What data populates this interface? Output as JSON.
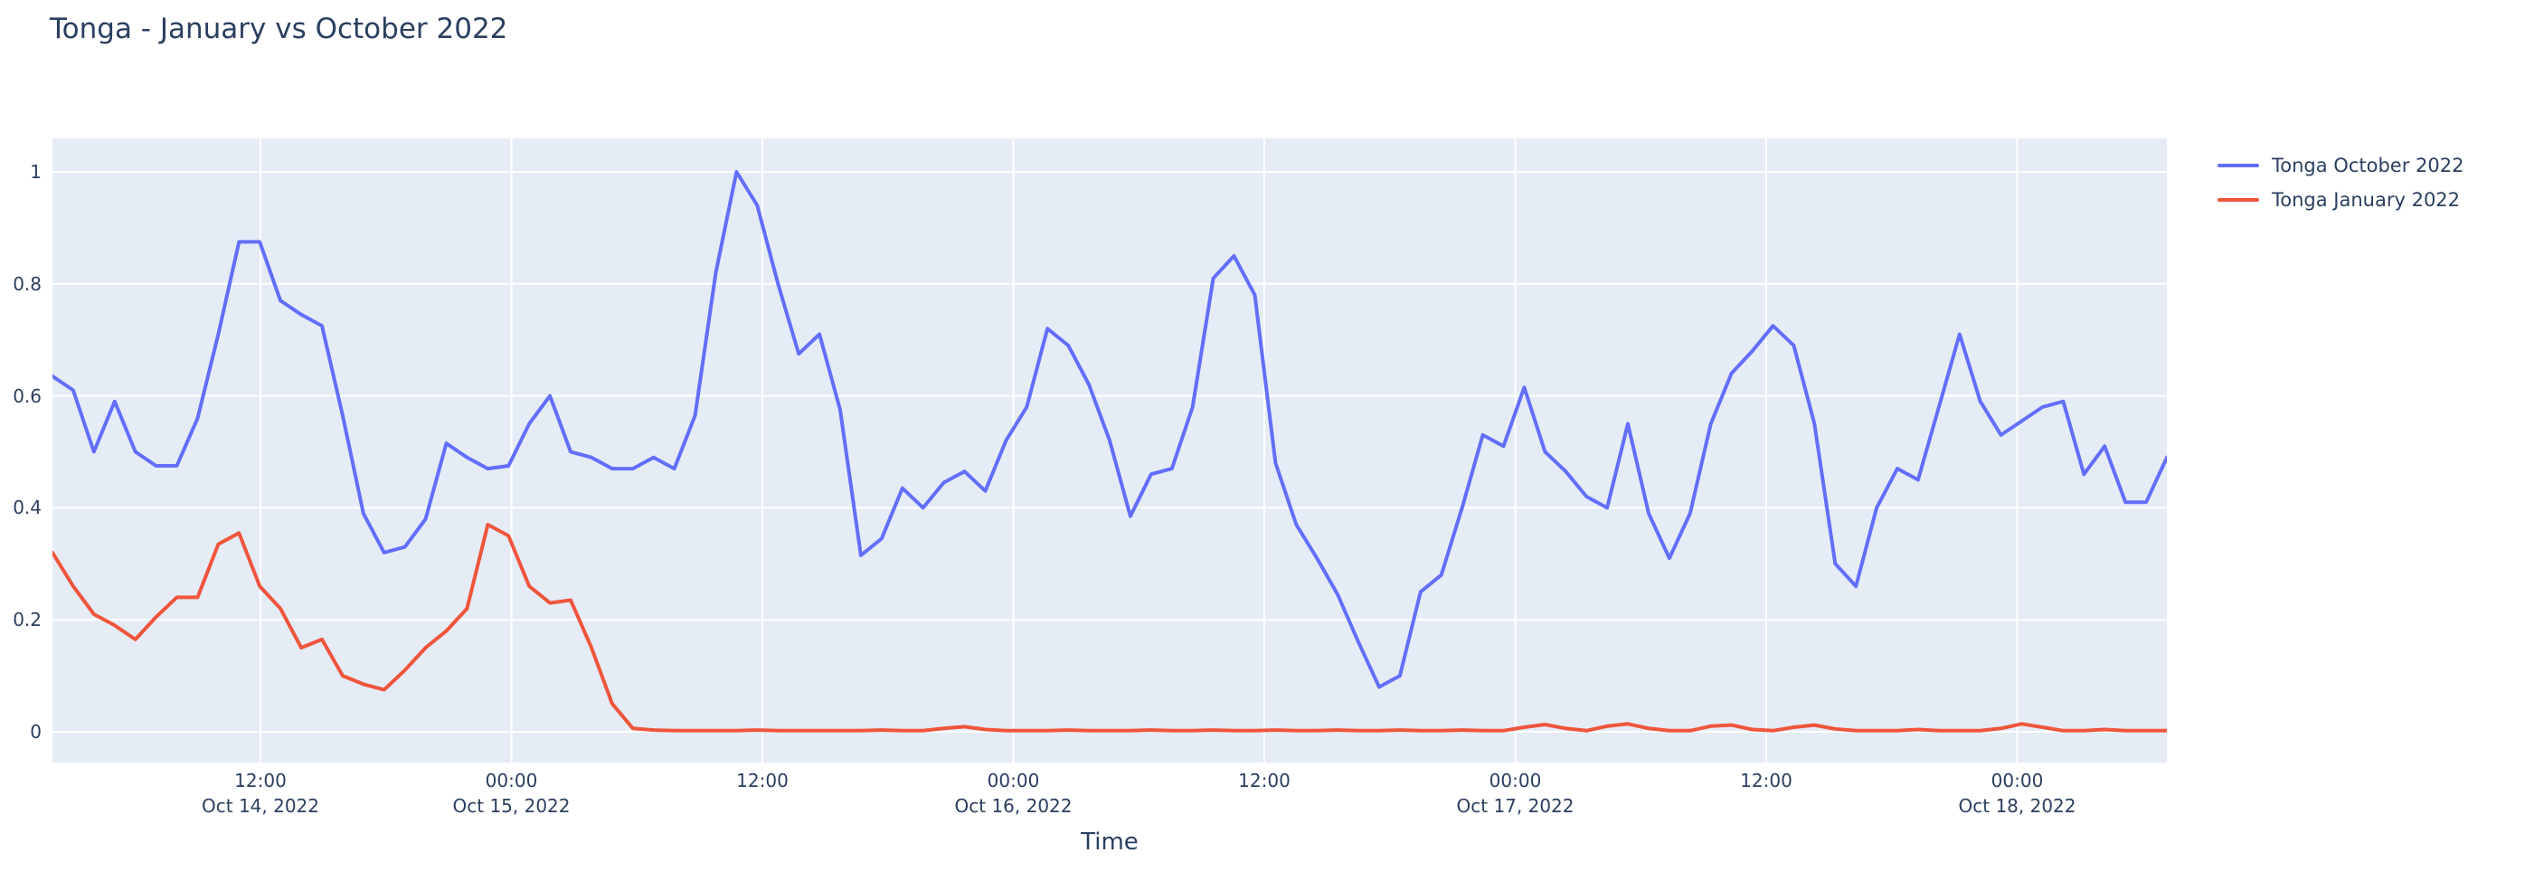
{
  "page": {
    "title": "Tonga - January vs October 2022"
  },
  "axes": {
    "x_title": "Time",
    "y_ticks": [
      {
        "label": "1",
        "value": 1.0
      },
      {
        "label": "0.8",
        "value": 0.8
      },
      {
        "label": "0.6",
        "value": 0.6
      },
      {
        "label": "0.4",
        "value": 0.4
      },
      {
        "label": "0.2",
        "value": 0.2
      },
      {
        "label": "0",
        "value": 0.0
      }
    ],
    "x_ticks": [
      {
        "time": "12:00",
        "date": "Oct 14, 2022"
      },
      {
        "time": "00:00",
        "date": "Oct 15, 2022"
      },
      {
        "time": "12:00",
        "date": ""
      },
      {
        "time": "00:00",
        "date": "Oct 16, 2022"
      },
      {
        "time": "12:00",
        "date": ""
      },
      {
        "time": "00:00",
        "date": "Oct 17, 2022"
      },
      {
        "time": "12:00",
        "date": ""
      },
      {
        "time": "00:00",
        "date": "Oct 18, 2022"
      }
    ]
  },
  "legend": {
    "items": [
      {
        "label": "Tonga October 2022",
        "color": "#636EFA"
      },
      {
        "label": "Tonga January 2022",
        "color": "#EF553B"
      }
    ]
  },
  "colors": {
    "text": "#2a3f5f",
    "plot_background": "#E5ECF6",
    "gridline": "#FFFFFF",
    "blue_series": "#636EFA",
    "red_series": "#EF553B"
  },
  "chart_data": {
    "type": "line",
    "title": "Tonga - January vs October 2022",
    "xlabel": "Time",
    "ylabel": "",
    "ylim": [
      0,
      1
    ],
    "grid": true,
    "legend_position": "right-top-outside",
    "plot_bgcolor": "#E5ECF6",
    "x_description": "hourly timestamps from Oct 14 2022 ~02:00 through Oct 18 2022 ~07:00",
    "x_tick_labels": [
      "12:00 Oct 14, 2022",
      "00:00 Oct 15, 2022",
      "12:00",
      "00:00 Oct 16, 2022",
      "12:00",
      "00:00 Oct 17, 2022",
      "12:00",
      "00:00 Oct 18, 2022"
    ],
    "series": [
      {
        "name": "Tonga October 2022",
        "color": "#636EFA",
        "values": [
          0.635,
          0.61,
          0.5,
          0.59,
          0.5,
          0.475,
          0.475,
          0.56,
          0.71,
          0.875,
          0.875,
          0.77,
          0.745,
          0.725,
          0.565,
          0.39,
          0.32,
          0.33,
          0.38,
          0.515,
          0.49,
          0.47,
          0.475,
          0.55,
          0.6,
          0.5,
          0.49,
          0.47,
          0.47,
          0.49,
          0.47,
          0.565,
          0.82,
          1.0,
          0.94,
          0.8,
          0.675,
          0.71,
          0.575,
          0.315,
          0.345,
          0.435,
          0.4,
          0.445,
          0.465,
          0.43,
          0.52,
          0.58,
          0.72,
          0.69,
          0.62,
          0.52,
          0.385,
          0.46,
          0.47,
          0.58,
          0.81,
          0.85,
          0.78,
          0.48,
          0.37,
          0.31,
          0.245,
          0.16,
          0.08,
          0.1,
          0.25,
          0.28,
          0.4,
          0.53,
          0.51,
          0.615,
          0.5,
          0.465,
          0.42,
          0.4,
          0.55,
          0.39,
          0.31,
          0.39,
          0.55,
          0.64,
          0.68,
          0.725,
          0.69,
          0.55,
          0.3,
          0.26,
          0.4,
          0.47,
          0.45,
          0.58,
          0.71,
          0.59,
          0.53,
          0.555,
          0.58,
          0.59,
          0.46,
          0.51,
          0.41,
          0.41,
          0.49
        ]
      },
      {
        "name": "Tonga January 2022",
        "color": "#EF553B",
        "values": [
          0.32,
          0.26,
          0.21,
          0.19,
          0.165,
          0.205,
          0.24,
          0.24,
          0.335,
          0.355,
          0.26,
          0.22,
          0.15,
          0.165,
          0.1,
          0.085,
          0.075,
          0.11,
          0.15,
          0.18,
          0.22,
          0.37,
          0.35,
          0.26,
          0.23,
          0.235,
          0.15,
          0.05,
          0.006,
          0.003,
          0.002,
          0.002,
          0.002,
          0.002,
          0.003,
          0.002,
          0.002,
          0.002,
          0.002,
          0.002,
          0.003,
          0.002,
          0.002,
          0.006,
          0.009,
          0.004,
          0.002,
          0.002,
          0.002,
          0.003,
          0.002,
          0.002,
          0.002,
          0.003,
          0.002,
          0.002,
          0.003,
          0.002,
          0.002,
          0.003,
          0.002,
          0.002,
          0.003,
          0.002,
          0.002,
          0.003,
          0.002,
          0.002,
          0.003,
          0.002,
          0.002,
          0.008,
          0.013,
          0.006,
          0.002,
          0.01,
          0.014,
          0.006,
          0.002,
          0.002,
          0.01,
          0.012,
          0.004,
          0.002,
          0.008,
          0.012,
          0.005,
          0.002,
          0.002,
          0.002,
          0.004,
          0.002,
          0.002,
          0.002,
          0.006,
          0.014,
          0.008,
          0.002,
          0.002,
          0.004,
          0.002,
          0.002,
          0.002
        ]
      }
    ]
  }
}
